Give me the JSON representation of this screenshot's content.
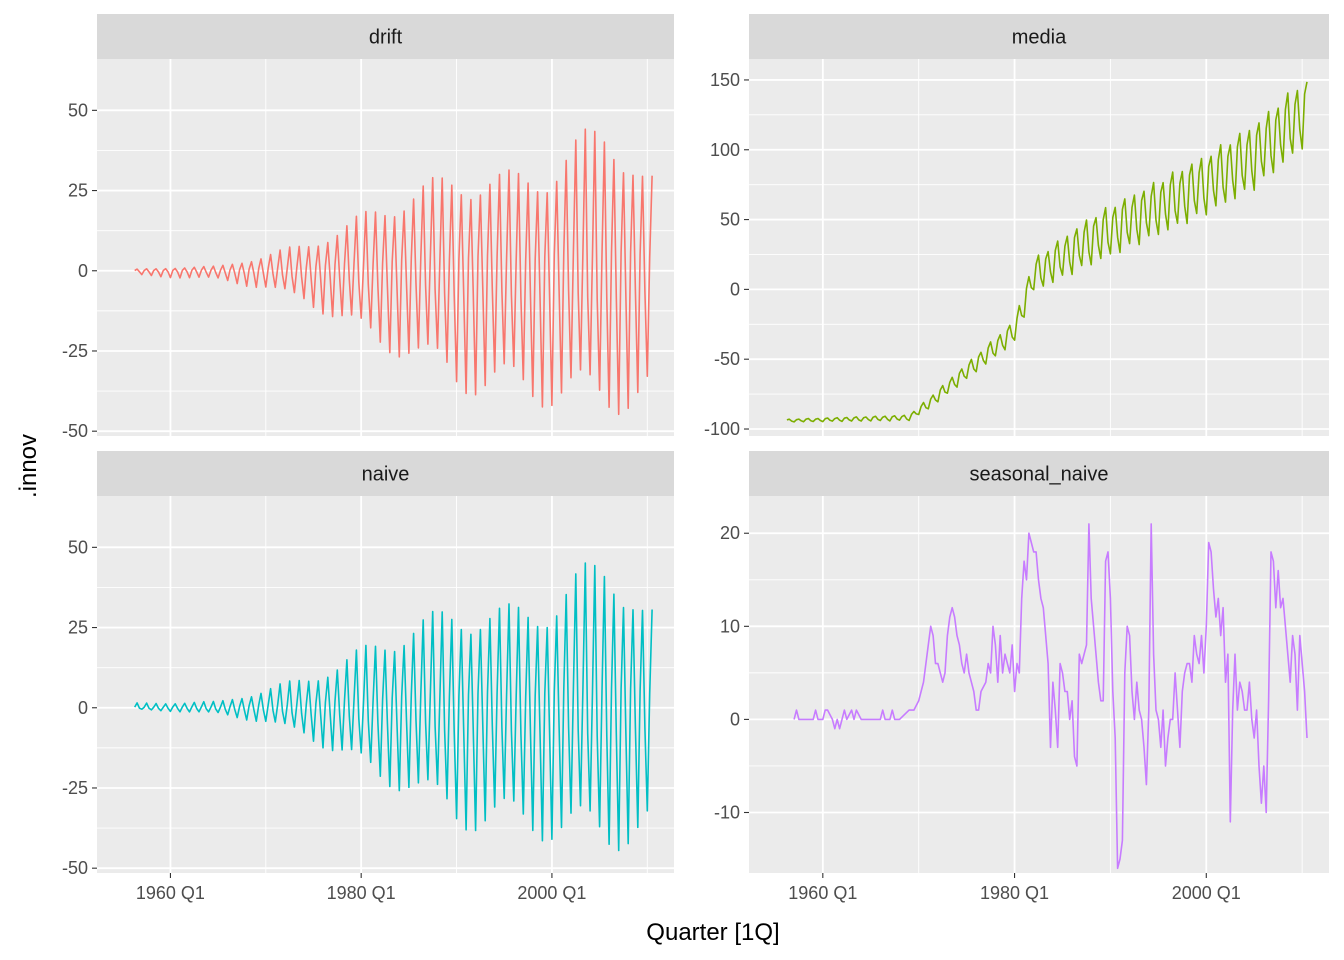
{
  "chart_data": {
    "type": "line",
    "title": "",
    "xlabel": "Quarter [1Q]",
    "ylabel": ".innov",
    "x_ticks": [
      "1960 Q1",
      "1980 Q1",
      "2000 Q1"
    ],
    "x_tick_values": [
      1960,
      1980,
      2000
    ],
    "xlim": [
      1952.3,
      2012.8
    ],
    "panels": [
      {
        "name": "drift",
        "color": "#F8766D",
        "ylim": [
          -51.5,
          66
        ],
        "y_ticks": [
          -50,
          -25,
          0,
          25,
          50
        ],
        "y_tick_labels": [
          "-50",
          "-25",
          "0",
          "25",
          "50"
        ],
        "pattern": "seasonal_growing",
        "envelope": [
          {
            "year": 1956.25,
            "amp_hi": 0.5,
            "amp_lo": 1.5
          },
          {
            "year": 1965,
            "amp_hi": 1.5,
            "amp_lo": 3
          },
          {
            "year": 1970,
            "amp_hi": 5,
            "amp_lo": 6
          },
          {
            "year": 1974,
            "amp_hi": 9,
            "amp_lo": 10
          },
          {
            "year": 1978,
            "amp_hi": 14,
            "amp_lo": 17
          },
          {
            "year": 1982,
            "amp_hi": 22,
            "amp_lo": 25
          },
          {
            "year": 1985,
            "amp_hi": 26,
            "amp_lo": 28
          },
          {
            "year": 1990,
            "amp_hi": 32,
            "amp_lo": 38
          },
          {
            "year": 1995,
            "amp_hi": 31,
            "amp_lo": 41
          },
          {
            "year": 2000,
            "amp_hi": 35,
            "amp_lo": 43
          },
          {
            "year": 2006,
            "amp_hi": 51,
            "amp_lo": 45
          },
          {
            "year": 2010,
            "amp_hi": 30,
            "amp_lo": 44
          }
        ]
      },
      {
        "name": "media",
        "color": "#7CAE00",
        "ylim": [
          -105,
          165
        ],
        "y_ticks": [
          -100,
          -50,
          0,
          50,
          100,
          150
        ],
        "y_tick_labels": [
          "-100",
          "-50",
          "0",
          "50",
          "100",
          "150"
        ],
        "pattern": "seasonal_trend",
        "trend": [
          {
            "year": 1956.25,
            "level": -94,
            "amp": 1
          },
          {
            "year": 1969,
            "level": -92,
            "amp": 2
          },
          {
            "year": 1971,
            "level": -82,
            "amp": 4
          },
          {
            "year": 1980,
            "level": -30,
            "amp": 8
          },
          {
            "year": 1982,
            "level": 10,
            "amp": 12
          },
          {
            "year": 1988,
            "level": 35,
            "amp": 18
          },
          {
            "year": 2000,
            "level": 75,
            "amp": 22
          },
          {
            "year": 2005,
            "level": 95,
            "amp": 24
          },
          {
            "year": 2010,
            "level": 125,
            "amp": 25
          }
        ]
      },
      {
        "name": "naive",
        "color": "#00BFC4",
        "ylim": [
          -51.5,
          66
        ],
        "y_ticks": [
          -50,
          -25,
          0,
          25,
          50
        ],
        "y_tick_labels": [
          "-50",
          "-25",
          "0",
          "25",
          "50"
        ],
        "pattern": "seasonal_growing",
        "envelope": [
          {
            "year": 1956.25,
            "amp_hi": 1.5,
            "amp_lo": 0.5
          },
          {
            "year": 1965,
            "amp_hi": 2,
            "amp_lo": 2
          },
          {
            "year": 1970,
            "amp_hi": 6,
            "amp_lo": 5
          },
          {
            "year": 1974,
            "amp_hi": 10,
            "amp_lo": 9
          },
          {
            "year": 1978,
            "amp_hi": 15,
            "amp_lo": 16
          },
          {
            "year": 1982,
            "amp_hi": 23,
            "amp_lo": 24
          },
          {
            "year": 1985,
            "amp_hi": 27,
            "amp_lo": 27
          },
          {
            "year": 1990,
            "amp_hi": 33,
            "amp_lo": 38
          },
          {
            "year": 1995,
            "amp_hi": 32,
            "amp_lo": 40
          },
          {
            "year": 2000,
            "amp_hi": 36,
            "amp_lo": 42
          },
          {
            "year": 2006,
            "amp_hi": 52,
            "amp_lo": 45
          },
          {
            "year": 2010,
            "amp_hi": 31,
            "amp_lo": 43
          }
        ]
      },
      {
        "name": "seasonal_naive",
        "color": "#C77CFF",
        "ylim": [
          -16.5,
          24
        ],
        "y_ticks": [
          -10,
          0,
          10,
          20
        ],
        "y_tick_labels": [
          "-10",
          "0",
          "10",
          "20"
        ],
        "pattern": "points",
        "points": [
          [
            1957.0,
            0
          ],
          [
            1957.25,
            1
          ],
          [
            1957.5,
            0
          ],
          [
            1958.0,
            0
          ],
          [
            1958.5,
            0
          ],
          [
            1959.0,
            0
          ],
          [
            1959.25,
            1
          ],
          [
            1959.5,
            0
          ],
          [
            1960.0,
            0
          ],
          [
            1960.25,
            1
          ],
          [
            1960.5,
            1
          ],
          [
            1961.0,
            0
          ],
          [
            1961.25,
            -1
          ],
          [
            1961.5,
            0
          ],
          [
            1961.75,
            -1
          ],
          [
            1962.0,
            0
          ],
          [
            1962.25,
            1
          ],
          [
            1962.5,
            0
          ],
          [
            1963.0,
            1
          ],
          [
            1963.25,
            0
          ],
          [
            1963.5,
            1
          ],
          [
            1964.0,
            0
          ],
          [
            1966.0,
            0
          ],
          [
            1966.25,
            1
          ],
          [
            1966.5,
            0
          ],
          [
            1967.0,
            0
          ],
          [
            1967.25,
            1
          ],
          [
            1967.5,
            0
          ],
          [
            1968.0,
            0
          ],
          [
            1969.0,
            1
          ],
          [
            1969.5,
            1
          ],
          [
            1970.0,
            2
          ],
          [
            1970.5,
            4
          ],
          [
            1971.0,
            8
          ],
          [
            1971.25,
            10
          ],
          [
            1971.5,
            9
          ],
          [
            1971.75,
            6
          ],
          [
            1972.0,
            6
          ],
          [
            1972.25,
            5
          ],
          [
            1972.5,
            4
          ],
          [
            1972.75,
            5
          ],
          [
            1973.0,
            9
          ],
          [
            1973.25,
            11
          ],
          [
            1973.5,
            12
          ],
          [
            1973.75,
            11
          ],
          [
            1974.0,
            9
          ],
          [
            1974.25,
            8
          ],
          [
            1974.5,
            6
          ],
          [
            1974.75,
            5
          ],
          [
            1975.0,
            7
          ],
          [
            1975.25,
            5
          ],
          [
            1975.5,
            4
          ],
          [
            1975.75,
            3
          ],
          [
            1976.0,
            1
          ],
          [
            1976.25,
            1
          ],
          [
            1976.5,
            3
          ],
          [
            1977.0,
            4
          ],
          [
            1977.25,
            6
          ],
          [
            1977.5,
            5
          ],
          [
            1977.75,
            10
          ],
          [
            1978.0,
            8
          ],
          [
            1978.25,
            4
          ],
          [
            1978.5,
            9
          ],
          [
            1978.75,
            5
          ],
          [
            1979.0,
            7
          ],
          [
            1979.25,
            6
          ],
          [
            1979.5,
            5
          ],
          [
            1979.75,
            8
          ],
          [
            1980.0,
            3
          ],
          [
            1980.25,
            6
          ],
          [
            1980.5,
            5
          ],
          [
            1980.75,
            13
          ],
          [
            1981.0,
            17
          ],
          [
            1981.25,
            15
          ],
          [
            1981.5,
            20
          ],
          [
            1981.75,
            19
          ],
          [
            1982.0,
            18
          ],
          [
            1982.25,
            18
          ],
          [
            1982.5,
            15
          ],
          [
            1982.75,
            13
          ],
          [
            1983.0,
            12
          ],
          [
            1983.25,
            9
          ],
          [
            1983.5,
            6
          ],
          [
            1983.75,
            -3
          ],
          [
            1984.0,
            4
          ],
          [
            1984.25,
            1
          ],
          [
            1984.5,
            -3
          ],
          [
            1984.75,
            6
          ],
          [
            1985.0,
            5
          ],
          [
            1985.25,
            3
          ],
          [
            1985.5,
            3
          ],
          [
            1985.75,
            0
          ],
          [
            1986.0,
            2
          ],
          [
            1986.25,
            -4
          ],
          [
            1986.5,
            -5
          ],
          [
            1986.75,
            7
          ],
          [
            1987.0,
            6
          ],
          [
            1987.25,
            7
          ],
          [
            1987.5,
            8
          ],
          [
            1987.75,
            21
          ],
          [
            1988.0,
            13
          ],
          [
            1988.25,
            10
          ],
          [
            1988.5,
            7
          ],
          [
            1988.75,
            4
          ],
          [
            1989.0,
            2
          ],
          [
            1989.25,
            2
          ],
          [
            1989.5,
            17
          ],
          [
            1989.75,
            18
          ],
          [
            1990.0,
            13
          ],
          [
            1990.25,
            3
          ],
          [
            1990.5,
            -2
          ],
          [
            1990.75,
            -16
          ],
          [
            1991.0,
            -15
          ],
          [
            1991.25,
            -13
          ],
          [
            1991.5,
            5
          ],
          [
            1991.75,
            10
          ],
          [
            1992.0,
            9
          ],
          [
            1992.25,
            3
          ],
          [
            1992.5,
            0
          ],
          [
            1992.75,
            4
          ],
          [
            1993.0,
            1
          ],
          [
            1993.25,
            0
          ],
          [
            1993.5,
            -3
          ],
          [
            1993.75,
            -7
          ],
          [
            1994.0,
            1
          ],
          [
            1994.25,
            21
          ],
          [
            1994.5,
            7
          ],
          [
            1994.75,
            1
          ],
          [
            1995.0,
            0
          ],
          [
            1995.25,
            -3
          ],
          [
            1995.5,
            1
          ],
          [
            1995.75,
            -5
          ],
          [
            1996.0,
            -2
          ],
          [
            1996.25,
            0
          ],
          [
            1996.5,
            0
          ],
          [
            1996.75,
            5
          ],
          [
            1997.0,
            1
          ],
          [
            1997.25,
            -3
          ],
          [
            1997.5,
            3
          ],
          [
            1997.75,
            5
          ],
          [
            1998.0,
            6
          ],
          [
            1998.25,
            6
          ],
          [
            1998.5,
            4
          ],
          [
            1998.75,
            9
          ],
          [
            1999.0,
            7
          ],
          [
            1999.25,
            6
          ],
          [
            1999.5,
            9
          ],
          [
            1999.75,
            5
          ],
          [
            2000.0,
            10
          ],
          [
            2000.25,
            19
          ],
          [
            2000.5,
            18
          ],
          [
            2000.75,
            14
          ],
          [
            2001.0,
            11
          ],
          [
            2001.25,
            13
          ],
          [
            2001.5,
            9
          ],
          [
            2001.75,
            12
          ],
          [
            2002.0,
            4
          ],
          [
            2002.25,
            7
          ],
          [
            2002.5,
            -11
          ],
          [
            2002.75,
            1
          ],
          [
            2003.0,
            7
          ],
          [
            2003.25,
            1
          ],
          [
            2003.5,
            4
          ],
          [
            2003.75,
            3
          ],
          [
            2004.0,
            1
          ],
          [
            2004.25,
            1
          ],
          [
            2004.5,
            4
          ],
          [
            2004.75,
            0
          ],
          [
            2005.0,
            -2
          ],
          [
            2005.25,
            1
          ],
          [
            2005.5,
            -5
          ],
          [
            2005.75,
            -9
          ],
          [
            2006.0,
            -5
          ],
          [
            2006.25,
            -10
          ],
          [
            2006.5,
            2
          ],
          [
            2006.75,
            18
          ],
          [
            2007.0,
            17
          ],
          [
            2007.25,
            12
          ],
          [
            2007.5,
            16
          ],
          [
            2007.75,
            12
          ],
          [
            2008.0,
            13
          ],
          [
            2008.25,
            10
          ],
          [
            2008.5,
            7
          ],
          [
            2008.75,
            4
          ],
          [
            2009.0,
            9
          ],
          [
            2009.25,
            7
          ],
          [
            2009.5,
            1
          ],
          [
            2009.75,
            9
          ],
          [
            2010.0,
            6
          ],
          [
            2010.25,
            3
          ],
          [
            2010.5,
            -2
          ]
        ]
      }
    ]
  }
}
